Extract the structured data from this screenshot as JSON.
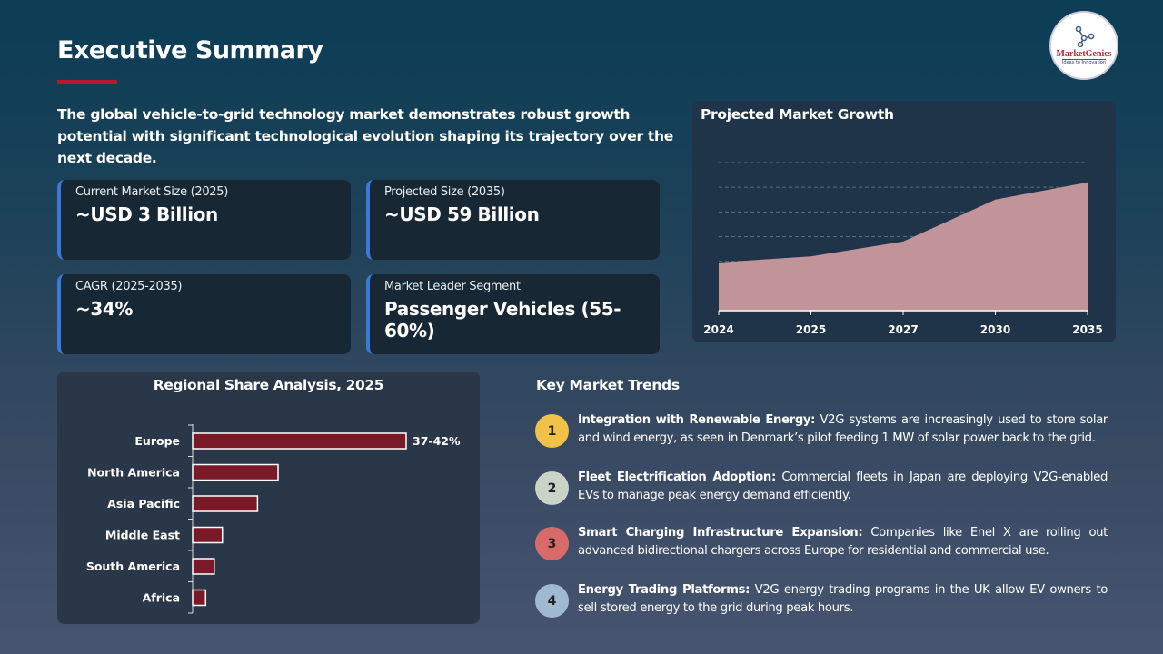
{
  "header": {
    "title": "Executive Summary",
    "logo_text": "MarketGenics",
    "logo_tagline": "Ideas to Innovation"
  },
  "intro": "The global vehicle-to-grid technology market demonstrates robust growth potential with significant technological evolution shaping its trajectory over the next decade.",
  "cards": [
    {
      "label": "Current Market Size (2025)",
      "value": "~USD 3 Billion"
    },
    {
      "label": "Projected Size (2035)",
      "value": "~USD 59 Billion"
    },
    {
      "label": "CAGR (2025-2035)",
      "value": "~34%"
    },
    {
      "label": "Market Leader Segment",
      "value": "Passenger Vehicles (55-60%)"
    }
  ],
  "colors": {
    "accent": "#c0142b",
    "card_border": "#3b78d8",
    "area_fill": "#c09499",
    "bar_fill": "#7a1a28"
  },
  "chart_data": [
    {
      "type": "area",
      "title": "Projected Market Growth",
      "categories": [
        "2024",
        "2025",
        "2027",
        "2030",
        "2035"
      ],
      "values": [
        1.95,
        2.2,
        2.8,
        4.5,
        5.2
      ],
      "ylim": [
        0,
        6
      ],
      "grid": true,
      "y_tick_labels_shown": false
    },
    {
      "type": "bar",
      "orientation": "horizontal",
      "title": "Regional Share Analysis, 2025",
      "categories": [
        "Europe",
        "North America",
        "Asia Pacific",
        "Middle East",
        "South America",
        "Africa"
      ],
      "values": [
        39.5,
        15.8,
        12,
        5.5,
        4,
        2.4
      ],
      "data_labels": [
        "37-42%",
        "",
        "",
        "",
        "",
        ""
      ],
      "xlim": [
        0,
        45
      ]
    }
  ],
  "trends": {
    "title": "Key Market Trends",
    "items": [
      {
        "num": "1",
        "color": "#f0c24a",
        "heading": "Integration with Renewable Energy:",
        "text": " V2G systems are increasingly used to store solar and wind energy, as seen in Denmark’s pilot feeding 1 MW of solar power back to the grid."
      },
      {
        "num": "2",
        "color": "#c9d3c6",
        "heading": "Fleet Electrification Adoption:",
        "text": " Commercial fleets in Japan are deploying V2G-enabled EVs to manage peak energy demand efficiently."
      },
      {
        "num": "3",
        "color": "#d96a6a",
        "heading": "Smart Charging Infrastructure Expansion:",
        "text": " Companies like Enel X are rolling out advanced bidirectional chargers across Europe for residential and commercial use."
      },
      {
        "num": "4",
        "color": "#9fbad0",
        "heading": "Energy Trading Platforms:",
        "text": " V2G energy trading programs in the UK allow EV owners to sell stored energy to the grid during peak hours."
      }
    ]
  }
}
